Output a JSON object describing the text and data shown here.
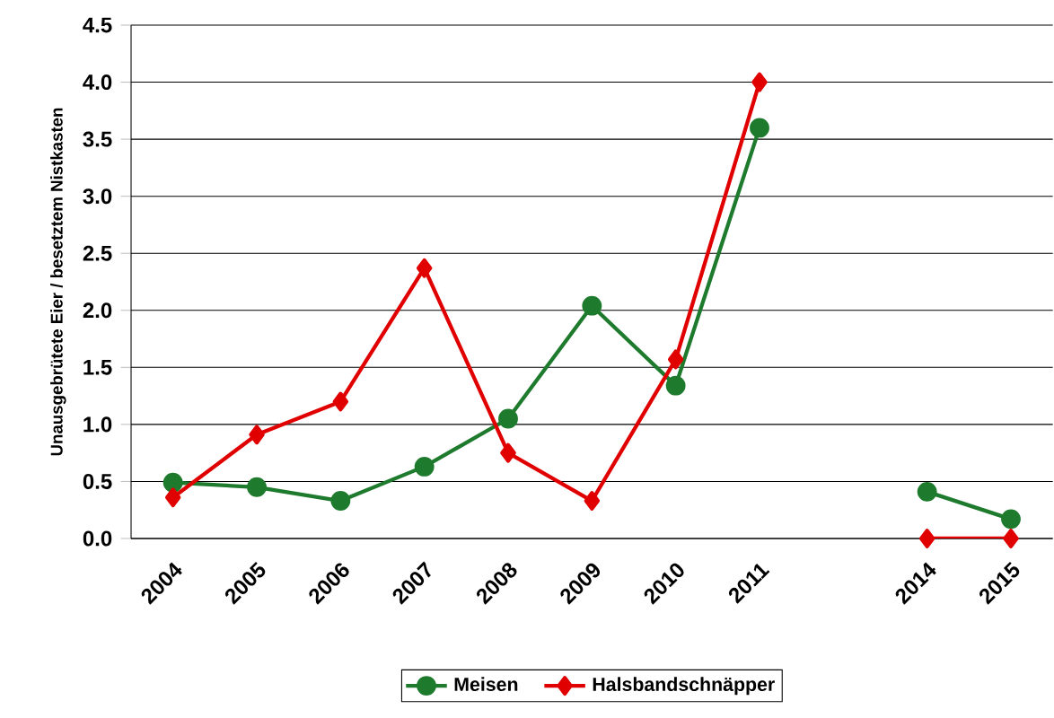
{
  "chart_data": {
    "type": "line",
    "ylabel": "Unausgebrütete Eier / besetztem Nistkasten",
    "categories": [
      "2004",
      "2005",
      "2006",
      "2007",
      "2008",
      "2009",
      "2010",
      "2011",
      null,
      "2014",
      "2015"
    ],
    "series": [
      {
        "name": "Meisen",
        "color": "#1e7b2e",
        "marker": "circle",
        "values": [
          0.49,
          0.45,
          0.33,
          0.63,
          1.05,
          2.04,
          1.34,
          3.6,
          null,
          0.41,
          0.17
        ]
      },
      {
        "name": "Halsbandschnäpper",
        "color": "#e00000",
        "marker": "diamond",
        "values": [
          0.36,
          0.91,
          1.2,
          2.37,
          0.75,
          0.33,
          1.57,
          4.0,
          null,
          0.0,
          0.0
        ]
      }
    ],
    "ylim": [
      0,
      4.5
    ],
    "yticks": [
      {
        "value": 0,
        "label": "0.0"
      },
      {
        "value": 0.5,
        "label": "0.5"
      },
      {
        "value": 1,
        "label": "1.0"
      },
      {
        "value": 1.5,
        "label": "1.5"
      },
      {
        "value": 2,
        "label": "2.0"
      },
      {
        "value": 2.5,
        "label": "2.5"
      },
      {
        "value": 3,
        "label": "3.0"
      },
      {
        "value": 3.5,
        "label": "3.5"
      },
      {
        "value": 4,
        "label": "4.0"
      },
      {
        "value": 4.5,
        "label": "4.5"
      }
    ],
    "grid": "y",
    "legend": "bottom",
    "line_style": "solid"
  }
}
